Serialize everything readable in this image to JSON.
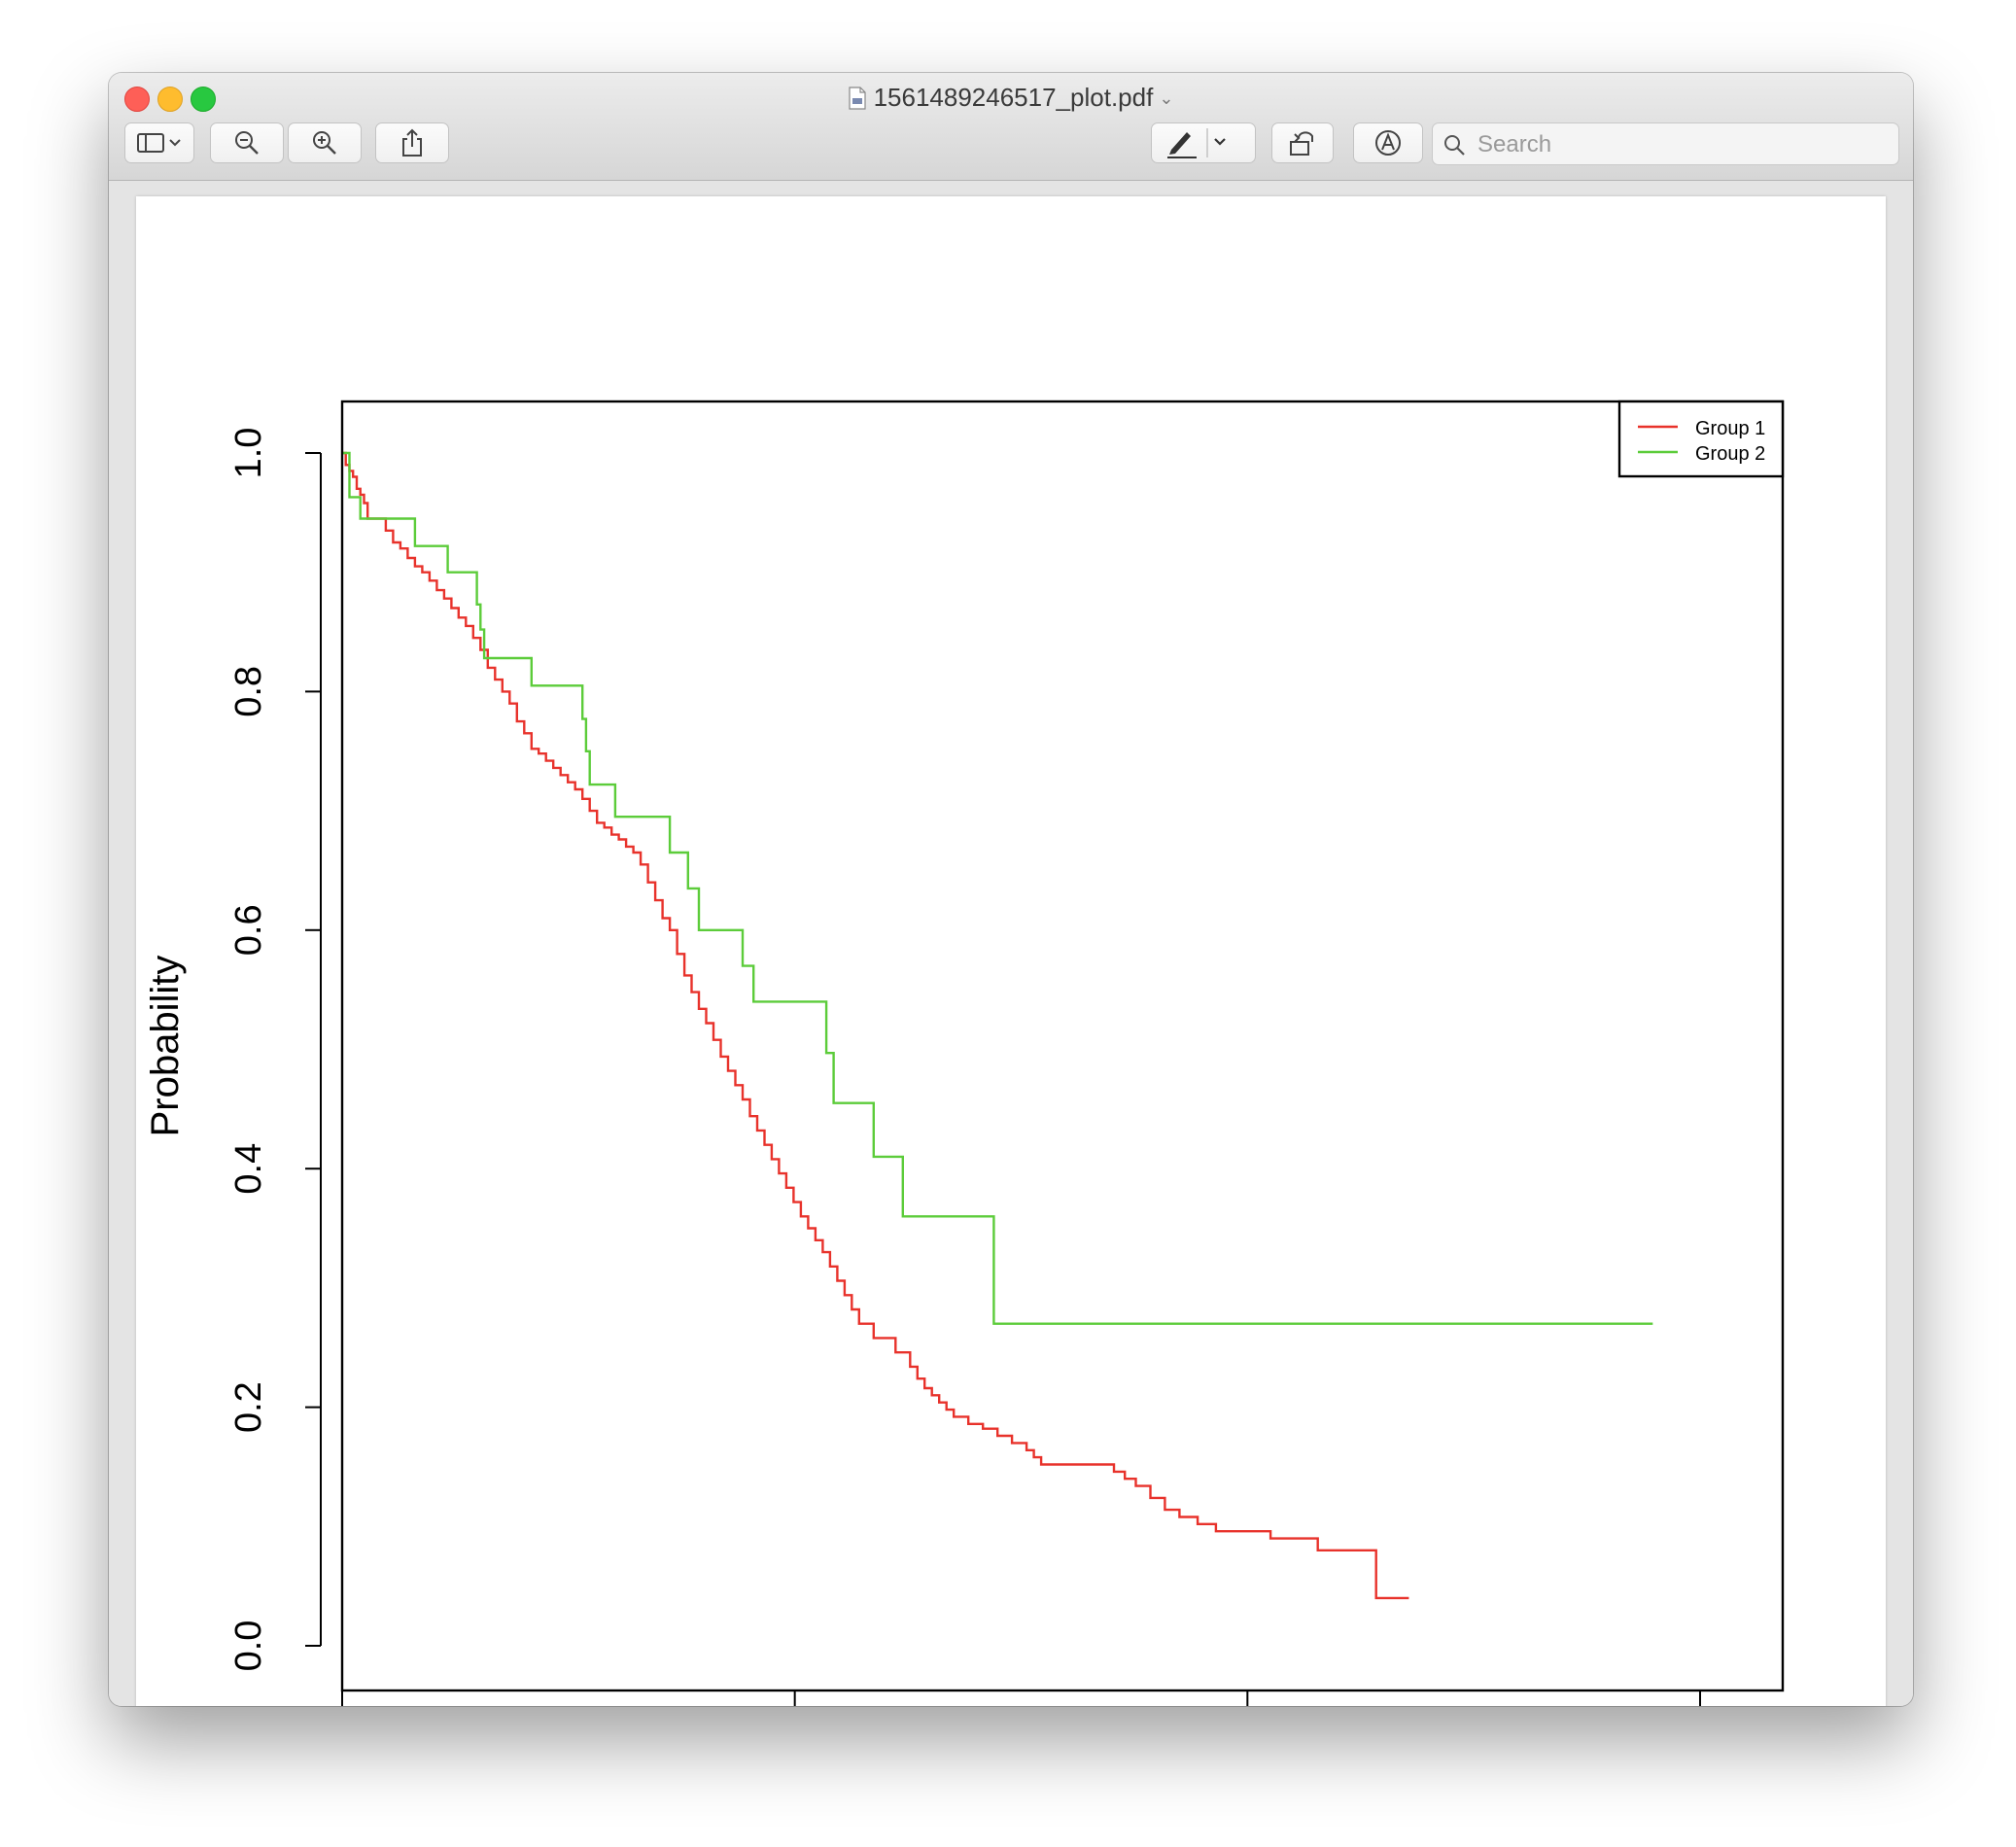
{
  "window": {
    "title": "1561489246517_plot.pdf"
  },
  "toolbar": {
    "search_placeholder": "Search"
  },
  "icons": {
    "sidebar": "sidebar-icon",
    "zoom_out": "zoom-out-icon",
    "zoom_in": "zoom-in-icon",
    "share": "share-icon",
    "markup": "pen-icon",
    "rotate": "rotate-icon",
    "annotate": "markup-circle-icon",
    "search": "search-icon"
  },
  "chart_data": {
    "type": "line",
    "title": "",
    "ylabel": "Probability",
    "xlabel": "",
    "ylim": [
      0.0,
      1.0
    ],
    "yticks": [
      "0.0",
      "0.2",
      "0.4",
      "0.6",
      "0.8",
      "1.0"
    ],
    "xlim": [
      0,
      3.73
    ],
    "xticks_count": 4,
    "legend_position": "top-right",
    "grid": false,
    "series": [
      {
        "name": "Group 1",
        "color": "#e8322b",
        "step": true,
        "x": [
          0,
          0.01,
          0.02,
          0.03,
          0.04,
          0.05,
          0.06,
          0.07,
          0.12,
          0.14,
          0.16,
          0.18,
          0.2,
          0.22,
          0.24,
          0.26,
          0.28,
          0.3,
          0.32,
          0.34,
          0.36,
          0.38,
          0.4,
          0.42,
          0.44,
          0.46,
          0.48,
          0.5,
          0.52,
          0.54,
          0.56,
          0.58,
          0.6,
          0.62,
          0.64,
          0.66,
          0.68,
          0.7,
          0.72,
          0.74,
          0.76,
          0.78,
          0.8,
          0.82,
          0.84,
          0.86,
          0.88,
          0.9,
          0.92,
          0.94,
          0.96,
          0.98,
          1.0,
          1.02,
          1.04,
          1.06,
          1.08,
          1.1,
          1.12,
          1.14,
          1.16,
          1.18,
          1.2,
          1.22,
          1.24,
          1.26,
          1.28,
          1.3,
          1.32,
          1.34,
          1.36,
          1.38,
          1.4,
          1.42,
          1.46,
          1.52,
          1.56,
          1.58,
          1.6,
          1.62,
          1.64,
          1.66,
          1.68,
          1.72,
          1.76,
          1.8,
          1.84,
          1.88,
          1.9,
          1.92,
          2.12,
          2.15,
          2.18,
          2.22,
          2.26,
          2.3,
          2.35,
          2.4,
          2.55,
          2.68,
          2.84,
          2.93
        ],
        "y": [
          1.0,
          0.99,
          0.985,
          0.98,
          0.97,
          0.965,
          0.958,
          0.945,
          0.935,
          0.925,
          0.92,
          0.912,
          0.905,
          0.9,
          0.893,
          0.885,
          0.878,
          0.87,
          0.862,
          0.855,
          0.845,
          0.835,
          0.82,
          0.81,
          0.8,
          0.79,
          0.775,
          0.765,
          0.752,
          0.748,
          0.742,
          0.736,
          0.73,
          0.724,
          0.718,
          0.71,
          0.7,
          0.69,
          0.686,
          0.68,
          0.676,
          0.67,
          0.665,
          0.655,
          0.64,
          0.625,
          0.61,
          0.6,
          0.58,
          0.562,
          0.548,
          0.534,
          0.522,
          0.508,
          0.494,
          0.482,
          0.47,
          0.458,
          0.444,
          0.432,
          0.42,
          0.408,
          0.396,
          0.384,
          0.372,
          0.36,
          0.35,
          0.34,
          0.33,
          0.318,
          0.306,
          0.294,
          0.282,
          0.27,
          0.258,
          0.246,
          0.234,
          0.224,
          0.216,
          0.21,
          0.204,
          0.198,
          0.192,
          0.186,
          0.182,
          0.176,
          0.17,
          0.164,
          0.158,
          0.152,
          0.146,
          0.14,
          0.134,
          0.124,
          0.114,
          0.108,
          0.102,
          0.096,
          0.09,
          0.08,
          0.04,
          0.04
        ]
      },
      {
        "name": "Group 2",
        "color": "#5ccc3a",
        "step": true,
        "x": [
          0,
          0.02,
          0.05,
          0.2,
          0.29,
          0.37,
          0.38,
          0.39,
          0.4,
          0.52,
          0.66,
          0.67,
          0.68,
          0.75,
          0.76,
          0.9,
          0.95,
          0.98,
          1.1,
          1.13,
          1.33,
          1.35,
          1.46,
          1.54,
          1.79,
          3.6
        ],
        "y": [
          1.0,
          0.963,
          0.945,
          0.922,
          0.9,
          0.873,
          0.852,
          0.828,
          0.828,
          0.805,
          0.777,
          0.75,
          0.722,
          0.695,
          0.695,
          0.665,
          0.635,
          0.6,
          0.57,
          0.54,
          0.497,
          0.455,
          0.41,
          0.36,
          0.27,
          0.27
        ]
      }
    ]
  }
}
